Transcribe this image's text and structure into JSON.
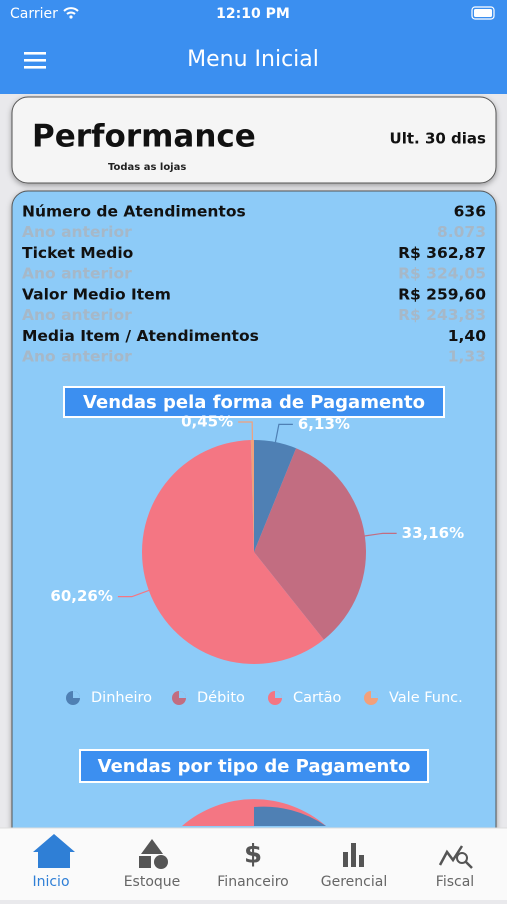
{
  "status_bar": {
    "carrier": "Carrier",
    "time": "12:10 PM"
  },
  "header": {
    "title": "Menu Inicial"
  },
  "card": {
    "title": "Performance",
    "subtitle": "Todas as lojas",
    "period": "Ult. 30 dias"
  },
  "metrics": [
    {
      "label": "Número de Atendimentos",
      "value": "636",
      "prev_label": "Ano anterior",
      "prev_value": "8.073"
    },
    {
      "label": "Ticket Medio",
      "value": "R$ 362,87",
      "prev_label": "Ano anterior",
      "prev_value": "R$ 324,05"
    },
    {
      "label": "Valor Medio Item",
      "value": "R$ 259,60",
      "prev_label": "Ano anterior",
      "prev_value": "R$ 243,83"
    },
    {
      "label": "Media Item / Atendimentos",
      "value": "1,40",
      "prev_label": "Ano anterior",
      "prev_value": "1,33"
    }
  ],
  "chart_data": {
    "type": "pie",
    "title": "Vendas pela forma de Pagamento",
    "categories": [
      "Dinheiro",
      "Débito",
      "Cartão",
      "Vale Func."
    ],
    "values": [
      6.13,
      33.16,
      60.26,
      0.45
    ],
    "value_labels": [
      "6,13%",
      "33,16%",
      "60,26%",
      "0,45%"
    ],
    "colors": [
      "#4f80b4",
      "#c26d81",
      "#f47683",
      "#f2a07b"
    ]
  },
  "second_chart": {
    "title": "Vendas por tipo de Pagamento"
  },
  "tabs": [
    "Inicio",
    "Estoque",
    "Financeiro",
    "Gerencial",
    "Fiscal"
  ]
}
